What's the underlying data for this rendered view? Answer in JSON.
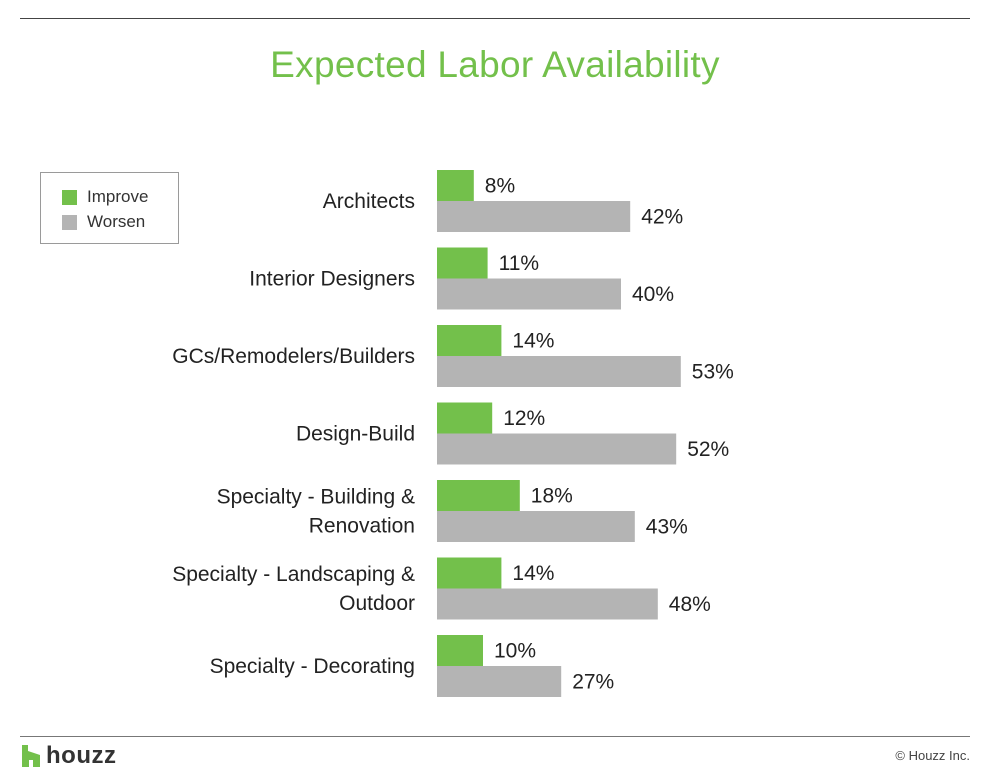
{
  "chart_data": {
    "type": "bar",
    "orientation": "horizontal",
    "title": "Expected Labor Availability",
    "categories": [
      [
        "Architects"
      ],
      [
        "Interior Designers"
      ],
      [
        "GCs/Remodelers/Builders"
      ],
      [
        "Design-Build"
      ],
      [
        "Specialty - Building &",
        "Renovation"
      ],
      [
        "Specialty - Landscaping &",
        "Outdoor"
      ],
      [
        "Specialty - Decorating"
      ]
    ],
    "series": [
      {
        "name": "Improve",
        "color": "#73c04b",
        "values": [
          8,
          11,
          14,
          12,
          18,
          14,
          10
        ]
      },
      {
        "name": "Worsen",
        "color": "#b4b4b4",
        "values": [
          42,
          40,
          53,
          52,
          43,
          48,
          27
        ]
      }
    ],
    "value_suffix": "%",
    "xlim": [
      0,
      100
    ],
    "grid": false,
    "legend_position": "top-left"
  },
  "footer": {
    "logo_text": "houzz",
    "copyright": "© Houzz Inc."
  }
}
